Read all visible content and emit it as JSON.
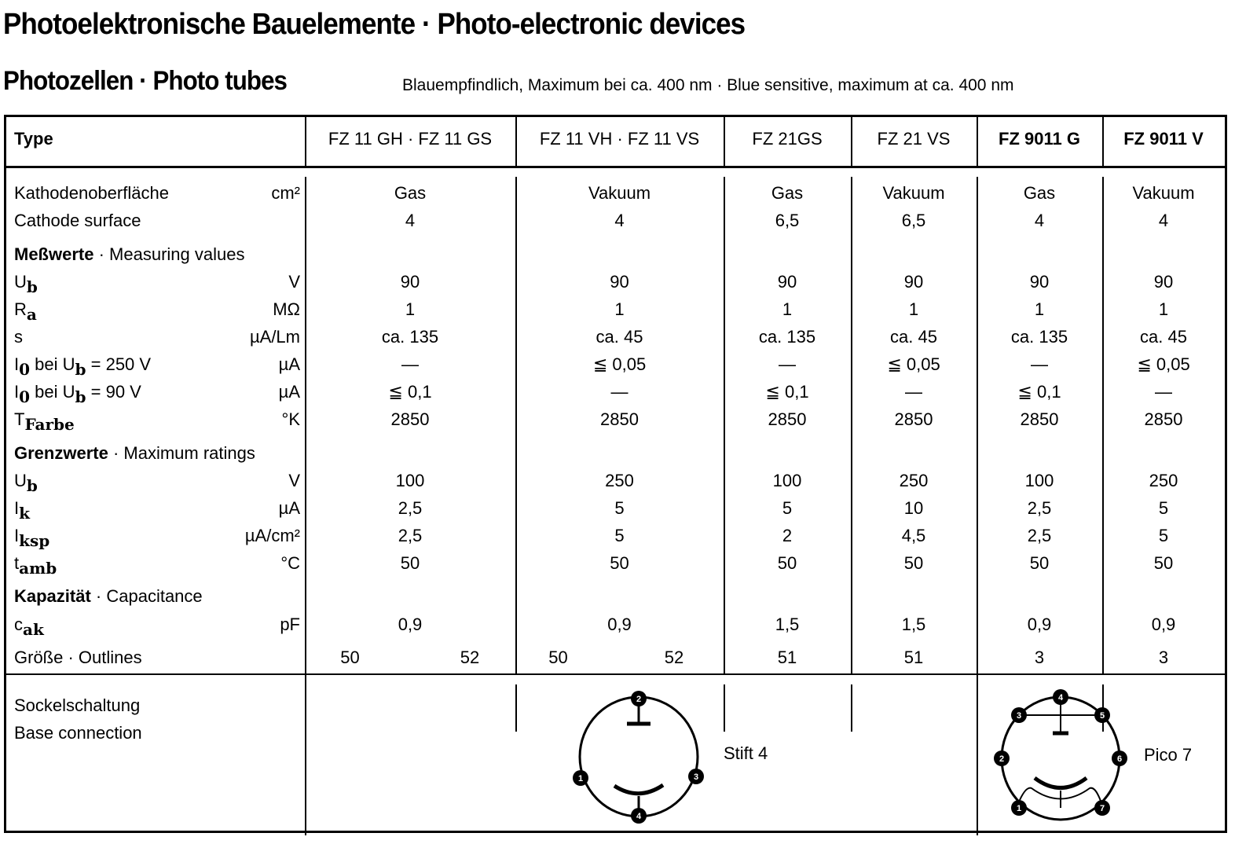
{
  "title": "Photoelektronische Bauelemente · Photo-electronic devices",
  "subtitle": "Photozellen · Photo tubes",
  "note": "Blauempfindlich, Maximum bei ca. 400 nm · Blue sensitive, maximum at ca. 400 nm",
  "header": {
    "type_label": "Type",
    "columns": [
      {
        "label": "FZ 11 GH · FZ 11 GS",
        "bold": false
      },
      {
        "label": "FZ 11 VH · FZ 11 VS",
        "bold": false
      },
      {
        "label": "FZ 21GS",
        "bold": false
      },
      {
        "label": "FZ 21 VS",
        "bold": false
      },
      {
        "label": "FZ 9011 G",
        "bold": true
      },
      {
        "label": "FZ 9011 V",
        "bold": true
      }
    ]
  },
  "cathode": {
    "label1": "Kathodenoberfläche",
    "label2": "Cathode surface",
    "unit": "cm²",
    "kind": [
      "Gas",
      "Vakuum",
      "Gas",
      "Vakuum",
      "Gas",
      "Vakuum"
    ],
    "area": [
      "4",
      "4",
      "6,5",
      "6,5",
      "4",
      "4"
    ]
  },
  "sections": {
    "measuring": {
      "de": "Meßwerte",
      "en": " · Measuring values"
    },
    "ratings": {
      "de": "Grenzwerte",
      "en": " · Maximum ratings"
    },
    "capacitance": {
      "de": "Kapazität",
      "en": " · Capacitance"
    }
  },
  "measuring_rows": [
    {
      "label": [
        {
          "t": "U"
        },
        {
          "s": "b"
        }
      ],
      "unit": "V",
      "values": [
        "90",
        "90",
        "90",
        "90",
        "90",
        "90"
      ]
    },
    {
      "label": [
        {
          "t": "R"
        },
        {
          "s": "a"
        }
      ],
      "unit": "MΩ",
      "values": [
        "1",
        "1",
        "1",
        "1",
        "1",
        "1"
      ]
    },
    {
      "label": [
        {
          "t": "s"
        }
      ],
      "unit": "µA/Lm",
      "values": [
        "ca. 135",
        "ca. 45",
        "ca. 135",
        "ca. 45",
        "ca. 135",
        "ca. 45"
      ]
    },
    {
      "label": [
        {
          "t": "I"
        },
        {
          "s": "0"
        },
        {
          "t": " bei U"
        },
        {
          "s": "b"
        },
        {
          "t": " = 250 V"
        }
      ],
      "unit": "µA",
      "values": [
        "—",
        "≦ 0,05",
        "—",
        "≦ 0,05",
        "—",
        "≦ 0,05"
      ]
    },
    {
      "label": [
        {
          "t": "I"
        },
        {
          "s": "0"
        },
        {
          "t": " bei U"
        },
        {
          "s": "b"
        },
        {
          "t": " =   90 V"
        }
      ],
      "unit": "µA",
      "values": [
        "≦ 0,1",
        "—",
        "≦ 0,1",
        "—",
        "≦ 0,1",
        "—"
      ]
    },
    {
      "label": [
        {
          "t": "T"
        },
        {
          "s": "Farbe"
        }
      ],
      "unit": "°K",
      "values": [
        "2850",
        "2850",
        "2850",
        "2850",
        "2850",
        "2850"
      ]
    }
  ],
  "ratings_rows": [
    {
      "label": [
        {
          "t": "U"
        },
        {
          "s": "b"
        }
      ],
      "unit": "V",
      "values": [
        "100",
        "250",
        "100",
        "250",
        "100",
        "250"
      ]
    },
    {
      "label": [
        {
          "t": "I"
        },
        {
          "s": "k"
        }
      ],
      "unit": "µA",
      "values": [
        "2,5",
        "5",
        "5",
        "10",
        "2,5",
        "5"
      ]
    },
    {
      "label": [
        {
          "t": "I"
        },
        {
          "s": "ksp"
        }
      ],
      "unit": "µA/cm²",
      "values": [
        "2,5",
        "5",
        "2",
        "4,5",
        "2,5",
        "5"
      ]
    },
    {
      "label": [
        {
          "t": "t"
        },
        {
          "s": "amb"
        }
      ],
      "unit": "°C",
      "values": [
        "50",
        "50",
        "50",
        "50",
        "50",
        "50"
      ]
    }
  ],
  "capacitance_rows": [
    {
      "label": [
        {
          "t": "c"
        },
        {
          "s": "ak"
        }
      ],
      "unit": "pF",
      "values": [
        "0,9",
        "0,9",
        "1,5",
        "1,5",
        "0,9",
        "0,9"
      ]
    }
  ],
  "outlines": {
    "label": "Größe · Outlines",
    "values": [
      "50",
      "52",
      "50",
      "52",
      "51",
      "51",
      "3",
      "3"
    ]
  },
  "base": {
    "label1": "Sockelschaltung",
    "label2": "Base connection",
    "stift": {
      "name": "Stift 4",
      "pins": [
        "1",
        "2",
        "3",
        "4"
      ]
    },
    "pico": {
      "name": "Pico 7",
      "pins": [
        "1",
        "2",
        "3",
        "4",
        "5",
        "6",
        "7"
      ]
    }
  }
}
